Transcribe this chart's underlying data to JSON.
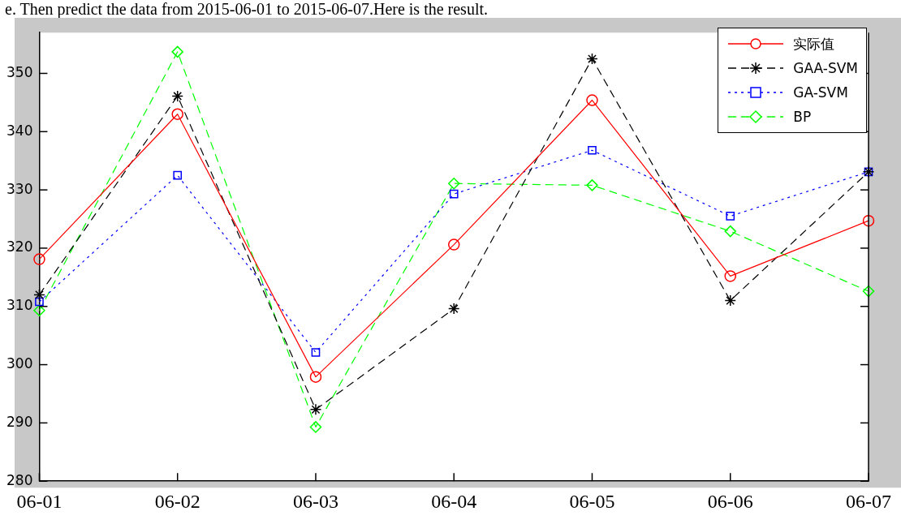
{
  "chart_data": {
    "type": "line",
    "annotations": [
      "e. Then predict the data from 2015-06-01 to 2015-06-07.Here is the result."
    ],
    "categories": [
      "06-01",
      "06-02",
      "06-03",
      "06-04",
      "06-05",
      "06-06",
      "06-07"
    ],
    "series": [
      {
        "name": "实际值",
        "color": "#ff0000",
        "marker": "circle",
        "line_style": "solid",
        "values": [
          318.1,
          343.0,
          297.9,
          320.6,
          345.4,
          315.2,
          324.7
        ]
      },
      {
        "name": "GAA-SVM",
        "color": "#000000",
        "marker": "cross",
        "line_style": "dashed",
        "values": [
          312.0,
          346.1,
          292.3,
          309.6,
          352.5,
          311.0,
          333.1
        ]
      },
      {
        "name": "GA-SVM",
        "color": "#0000ff",
        "marker": "square",
        "line_style": "dotted",
        "values": [
          310.8,
          332.5,
          302.1,
          329.3,
          336.8,
          325.5,
          333.1
        ]
      },
      {
        "name": "BP",
        "color": "#00ff00",
        "marker": "diamond",
        "line_style": "dashed",
        "values": [
          309.3,
          353.7,
          289.3,
          331.1,
          330.8,
          322.9,
          312.6
        ]
      }
    ],
    "ylim": [
      280,
      357
    ],
    "yticks": [
      280,
      290,
      300,
      310,
      320,
      330,
      340,
      350
    ],
    "grid": false,
    "legend": "top right"
  }
}
